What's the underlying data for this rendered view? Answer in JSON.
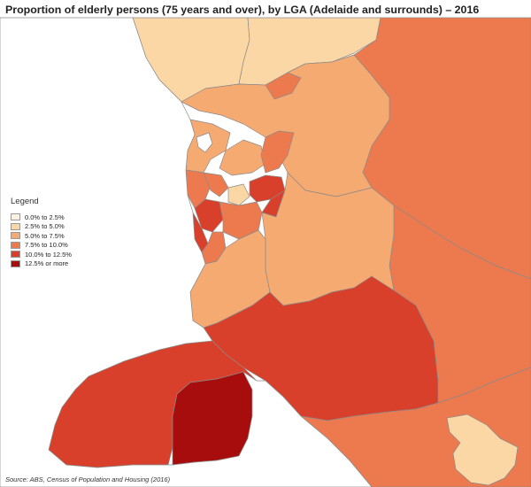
{
  "title": "Proportion of elderly persons (75 years and over), by LGA (Adelaide and surrounds) – 2016",
  "legend": {
    "title": "Legend",
    "items": [
      {
        "label": "0.0% to 2.5%",
        "color": "#fdf2e0"
      },
      {
        "label": "2.5% to 5.0%",
        "color": "#fbd7a6"
      },
      {
        "label": "5.0% to 7.5%",
        "color": "#f5aa72"
      },
      {
        "label": "7.5% to 10.0%",
        "color": "#ec7a4e"
      },
      {
        "label": "10.0% to 12.5%",
        "color": "#d9402b"
      },
      {
        "label": "12.5% or more",
        "color": "#a80d0d"
      }
    ]
  },
  "source": "Source:  ABS, Census of Population and Housing (2016)",
  "colors": {
    "sea": "#ffffff",
    "border": "#8a8a8a"
  }
}
